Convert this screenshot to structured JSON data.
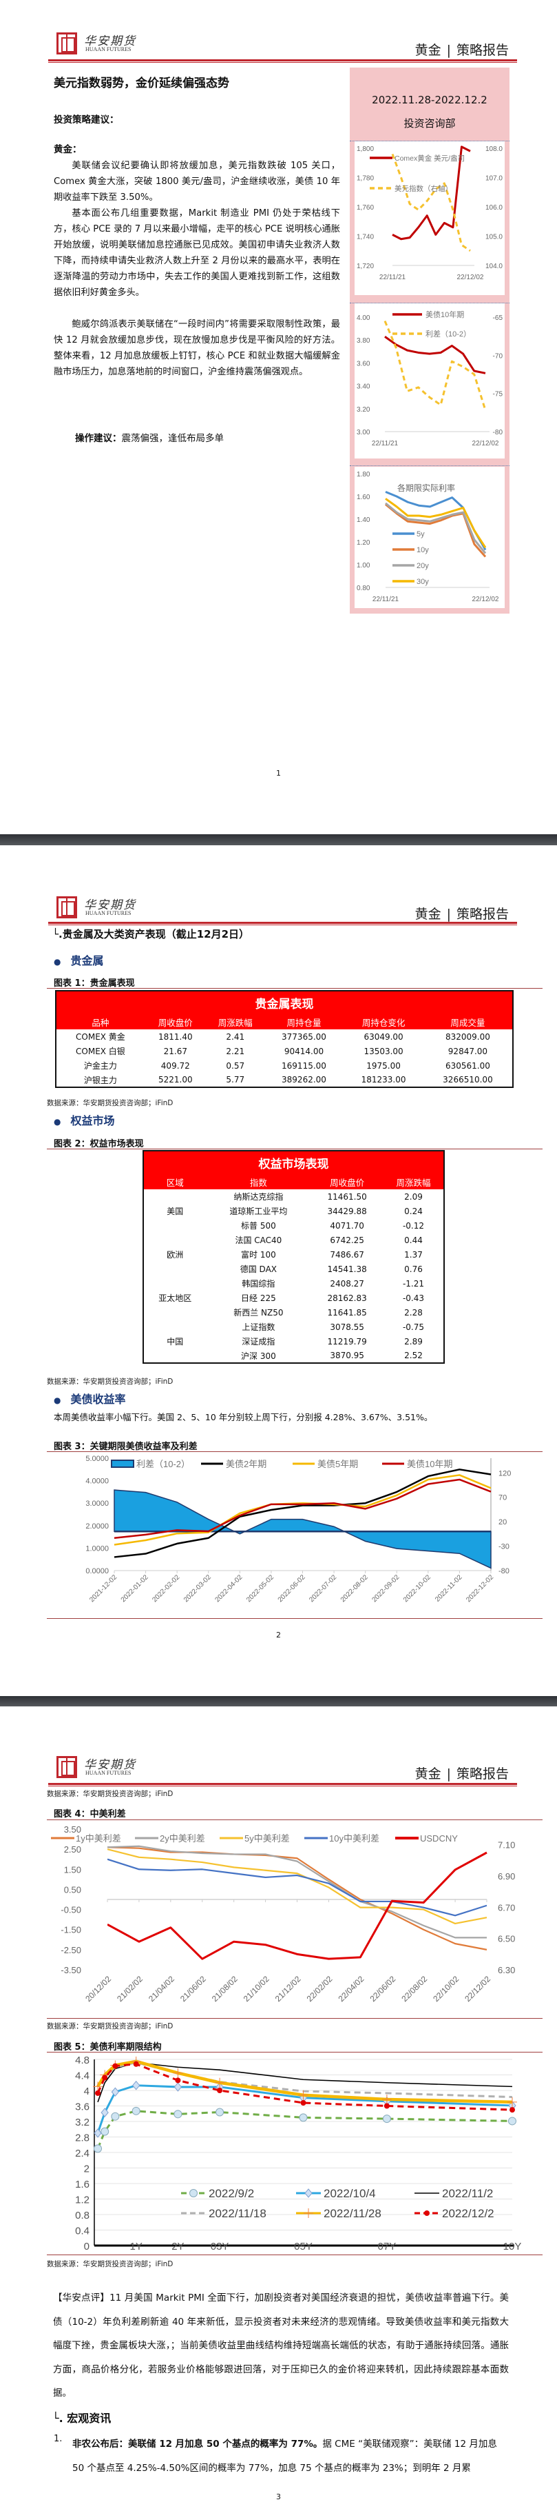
{
  "header": {
    "logo_cn": "华安期货",
    "logo_en": "HUAAN FUTURES",
    "category": "黄金",
    "separator": "|",
    "report_type": "策略报告"
  },
  "page1": {
    "title": "美元指数弱势，金价延续偏强态势",
    "strategy_heading": "投资策略建议：",
    "gold_heading": "黄金：",
    "paragraphs": [
      "美联储会议纪要确认即将放缓加息，美元指数跌破 105 关口，Comex 黄金大涨，突破 1800 美元/盎司，沪金继续收涨，美债 10 年期收益率下跌至 3.50%。",
      "基本面公布几组重要数据，Markit 制造业 PMI 仍处于荣枯线下方，核心 PCE 录的 7 月以来最小增幅，走平的核心 PCE 说明核心通胀开始放缓，说明美联储加息控通胀已见成效。美国初申请失业救济人数下降，而持续申请失业救济人数上升至 2 月份以来的最高水平，表明在逐渐降温的劳动力市场中，失去工作的美国人更难找到新工作，这组数据依旧利好黄金多头。",
      "鲍威尔鸽派表示美联储在“一段时间内”将需要采取限制性政策，最快 12 月就会放缓加息步伐，现在放慢加息步伐是平衡风险的好方法。整体来看，12 月加息放缓板上钉钉，核心 PCE 和就业数据大幅缓解金融市场压力，加息落地前的时间窗口，沪金维持震荡偏强观点。"
    ],
    "operation_label": "操作建议：",
    "operation_text": "震荡偏强，逢低布局多单",
    "sidebar": {
      "date_range": "2022.11.28-2022.12.2",
      "department": "投资咨询部"
    },
    "page_number": "1"
  },
  "page2": {
    "section_title": "└.贵金属及大类资产表现（截止12月2日）",
    "sub_precious": "贵金属",
    "fig1_title": "图表 1：贵金属表现",
    "table1": {
      "title": "贵金属表现",
      "columns": [
        "品种",
        "周收盘价",
        "周涨跌幅",
        "周持仓量",
        "周持仓变化",
        "周成交量"
      ],
      "rows": [
        [
          "COMEX 黄金",
          "1811.40",
          "2.41",
          "377365.00",
          "63049.00",
          "832009.00"
        ],
        [
          "COMEX 白银",
          "21.67",
          "2.21",
          "90414.00",
          "13503.00",
          "92847.00"
        ],
        [
          "沪金主力",
          "409.72",
          "0.57",
          "169115.00",
          "1975.00",
          "630561.00"
        ],
        [
          "沪银主力",
          "5221.00",
          "5.77",
          "389262.00",
          "181233.00",
          "3266510.00"
        ]
      ]
    },
    "source": "数据来源：华安期货投资咨询部；iFinD",
    "sub_equity": "权益市场",
    "fig2_title": "图表 2：权益市场表现",
    "table2": {
      "title": "权益市场表现",
      "columns": [
        "区域",
        "指数",
        "周收盘价",
        "周涨跌幅"
      ],
      "groups": [
        {
          "region": "美国",
          "rows": [
            [
              "纳斯达克综指",
              "11461.50",
              "2.09"
            ],
            [
              "道琼斯工业平均",
              "34429.88",
              "0.24"
            ],
            [
              "标普 500",
              "4071.70",
              "-0.12"
            ]
          ]
        },
        {
          "region": "欧洲",
          "rows": [
            [
              "法国 CAC40",
              "6742.25",
              "0.44"
            ],
            [
              "富时 100",
              "7486.67",
              "1.37"
            ],
            [
              "德国 DAX",
              "14541.38",
              "0.76"
            ]
          ]
        },
        {
          "region": "亚太地区",
          "rows": [
            [
              "韩国综指",
              "2408.27",
              "-1.21"
            ],
            [
              "日经 225",
              "28162.83",
              "-0.43"
            ],
            [
              "新西兰 NZ50",
              "11641.85",
              "2.28"
            ]
          ]
        },
        {
          "region": "中国",
          "rows": [
            [
              "上证指数",
              "3078.55",
              "-0.75"
            ],
            [
              "深证成指",
              "11219.79",
              "2.89"
            ],
            [
              "沪深 300",
              "3870.95",
              "2.52"
            ]
          ]
        }
      ]
    },
    "sub_treasury": "美债收益率",
    "treasury_text": "本周美债收益率小幅下行。美国 2、5、10 年分别较上周下行，分别报 4.28%、3.67%、3.51%。",
    "fig3_title": "图表 3：关键期限美债收益率及利差",
    "page_number": "2"
  },
  "page3": {
    "source": "数据来源：华安期货投资咨询部；iFinD",
    "fig4_title": "图表 4：中美利差",
    "fig5_title": "图表 5：美债利率期限结构",
    "comment": "【华安点评】11 月美国 Markit PMI 全面下行，加剧投资者对美国经济衰退的担忧，美债收益率普遍下行。美债（10-2）年负利差刷新逾 40 年来新低，显示投资者对未来经济的悲观情绪。导致美债收益率和美元指数大幅度下挫，贵金属板块大涨，；当前美债收益里曲线结构维持短端高长端低的状态，有助于通胀持续回落。通胀方面，商品价格分化，若服务业价格能够跟进回落，对于压抑已久的金价将迎来转机，因此持续跟踪基本面数据。",
    "section_title": "└. 宏观资讯",
    "news": [
      {
        "num": "1.",
        "headline": "非农公布后：美联储 12 月加息 50 个基点的概率为 77%。",
        "text": "据 CME “美联储观察”：美联储 12 月加息 50 个基点至 4.25%-4.50%区间的概率为 77%，加息 75 个基点的概率为 23%；到明年 2 月累"
      }
    ],
    "page_number": "3"
  },
  "chart_data": [
    {
      "type": "line",
      "x": [
        "22/11/21",
        "22/11/22",
        "22/11/23",
        "22/11/24",
        "22/11/25",
        "22/11/28",
        "22/11/29",
        "22/11/30",
        "22/12/01",
        "22/12/02"
      ],
      "xtick_labels": [
        "22/11/21",
        "22/12/02"
      ],
      "ylim_left": [
        1720,
        1800
      ],
      "yticks_left": [
        "1,720",
        "1,740",
        "1,760",
        "1,780",
        "1,800"
      ],
      "ylim_right": [
        104,
        108
      ],
      "yticks_right": [
        "104.0",
        "105.0",
        "106.0",
        "107.0",
        "108.0"
      ],
      "series": [
        {
          "name": "Comex黄金 美元/盎司",
          "axis": "left",
          "color": "#c00000",
          "values": [
            1741,
            1738,
            1739,
            1746,
            1754,
            1741,
            1749,
            1746,
            1801,
            1798
          ]
        },
        {
          "name": "美元指数（右轴）",
          "axis": "right",
          "color": "#f5c12e",
          "style": "dashed",
          "values": [
            107.8,
            107.0,
            106.1,
            105.9,
            106.2,
            106.6,
            106.8,
            105.9,
            104.7,
            104.5
          ]
        }
      ]
    },
    {
      "type": "line",
      "x": [
        "22/11/21",
        "22/11/22",
        "22/11/23",
        "22/11/24",
        "22/11/25",
        "22/11/28",
        "22/11/29",
        "22/11/30",
        "22/12/01",
        "22/12/02"
      ],
      "xtick_labels": [
        "22/11/21",
        "22/12/02"
      ],
      "ylim_left": [
        3.0,
        4.0
      ],
      "yticks_left": [
        "3.00",
        "3.20",
        "3.40",
        "3.60",
        "3.80",
        "4.00"
      ],
      "ylim_right": [
        -80,
        -65
      ],
      "yticks_right": [
        "-80",
        "-75",
        "-70",
        "-65"
      ],
      "series": [
        {
          "name": "美债10年期",
          "axis": "left",
          "color": "#c00000",
          "values": [
            3.83,
            3.76,
            3.71,
            3.69,
            3.68,
            3.69,
            3.75,
            3.68,
            3.53,
            3.51
          ]
        },
        {
          "name": "利差（10-2）",
          "axis": "right",
          "color": "#f5c12e",
          "style": "dashed",
          "values": [
            -65.5,
            -69,
            -74.7,
            -74.2,
            -75.5,
            -76.5,
            -70.8,
            -71.5,
            -72.5,
            -77.2
          ]
        }
      ]
    },
    {
      "type": "line",
      "title": "各期限实际利率",
      "x": [
        "22/11/21",
        "22/11/22",
        "22/11/23",
        "22/11/24",
        "22/11/25",
        "22/11/28",
        "22/11/29",
        "22/11/30",
        "22/12/01",
        "22/12/02"
      ],
      "xtick_labels": [
        "22/11/21",
        "22/12/02"
      ],
      "ylim": [
        0.8,
        1.8
      ],
      "yticks": [
        "0.80",
        "1.00",
        "1.20",
        "1.40",
        "1.60",
        "1.80"
      ],
      "series": [
        {
          "name": "5y",
          "color": "#4a8fd0",
          "values": [
            1.64,
            1.6,
            1.55,
            1.52,
            1.51,
            1.55,
            1.59,
            1.5,
            1.3,
            1.13
          ]
        },
        {
          "name": "10y",
          "color": "#e07b39",
          "values": [
            1.53,
            1.45,
            1.38,
            1.37,
            1.36,
            1.39,
            1.43,
            1.45,
            1.18,
            1.07
          ]
        },
        {
          "name": "20y",
          "color": "#a5a5a5",
          "values": [
            1.54,
            1.46,
            1.4,
            1.39,
            1.38,
            1.41,
            1.44,
            1.46,
            1.22,
            1.1
          ]
        },
        {
          "name": "30y",
          "color": "#f5b800",
          "values": [
            1.58,
            1.51,
            1.43,
            1.43,
            1.42,
            1.44,
            1.47,
            1.5,
            1.3,
            1.15
          ]
        }
      ]
    },
    {
      "type": "line",
      "x": [
        "2021-12-02",
        "2022-01-02",
        "2022-02-02",
        "2022-03-02",
        "2022-04-02",
        "2022-05-02",
        "2022-06-02",
        "2022-07-02",
        "2022-08-02",
        "2022-09-02",
        "2022-10-02",
        "2022-11-02",
        "2022-12-02"
      ],
      "ylim_left": [
        0,
        5
      ],
      "yticks_left": [
        "0.0000",
        "1.0000",
        "2.0000",
        "3.0000",
        "4.0000",
        "5.0000"
      ],
      "ylim_right": [
        -80,
        150
      ],
      "yticks_right_values": [
        -80,
        -30,
        20,
        70,
        120
      ],
      "yticks_right": [
        "-80",
        "-30",
        "20",
        "70",
        "120"
      ],
      "series": [
        {
          "name": "利差（10-2）",
          "axis": "right",
          "type": "area",
          "color": "#1aa0e0",
          "values": [
            85,
            80,
            60,
            25,
            -5,
            25,
            25,
            10,
            -20,
            -35,
            -40,
            -45,
            -75
          ]
        },
        {
          "name": "美债2年期",
          "axis": "left",
          "color": "#000000",
          "values": [
            0.6,
            0.75,
            1.2,
            1.45,
            2.4,
            2.7,
            2.9,
            2.9,
            3.0,
            3.5,
            4.2,
            4.5,
            4.28
          ]
        },
        {
          "name": "美债5年期",
          "axis": "left",
          "color": "#f5b800",
          "values": [
            1.15,
            1.35,
            1.65,
            1.7,
            2.55,
            2.95,
            3.0,
            2.95,
            2.85,
            3.35,
            4.05,
            4.25,
            3.67
          ]
        },
        {
          "name": "美债10年期",
          "axis": "left",
          "color": "#c00000",
          "values": [
            1.45,
            1.6,
            1.8,
            1.75,
            2.45,
            2.95,
            2.95,
            3.0,
            2.75,
            3.2,
            3.85,
            4.05,
            3.51
          ]
        }
      ]
    },
    {
      "type": "line",
      "x": [
        "20/12/02",
        "21/02/02",
        "21/04/02",
        "21/06/02",
        "21/08/02",
        "21/10/02",
        "21/12/02",
        "22/02/02",
        "22/04/02",
        "22/06/02",
        "22/08/02",
        "22/10/02",
        "22/12/02"
      ],
      "ylim_left": [
        -3.5,
        3.5
      ],
      "yticks_left": [
        "-3.50",
        "-2.50",
        "-1.50",
        "-0.50",
        "0.50",
        "1.50",
        "2.50",
        "3.50"
      ],
      "ylim_right": [
        6.3,
        7.2
      ],
      "yticks_right_values": [
        6.3,
        6.5,
        6.7,
        6.9,
        7.1
      ],
      "yticks_right": [
        "6.30",
        "6.50",
        "6.70",
        "6.90",
        "7.10"
      ],
      "series": [
        {
          "name": "1y中美利差",
          "axis": "left",
          "color": "#e07b39",
          "values": [
            2.6,
            2.55,
            2.35,
            2.35,
            2.25,
            2.2,
            2.05,
            1.0,
            0.0,
            -0.7,
            -1.5,
            -2.2,
            -2.5
          ]
        },
        {
          "name": "2y中美利差",
          "axis": "left",
          "color": "#a5a5a5",
          "values": [
            2.6,
            2.65,
            2.4,
            2.3,
            2.25,
            2.25,
            1.9,
            0.9,
            -0.1,
            -0.6,
            -1.3,
            -1.9,
            -1.9
          ]
        },
        {
          "name": "5y中美利差",
          "axis": "left",
          "color": "#f5c12e",
          "values": [
            2.5,
            2.1,
            2.0,
            1.85,
            1.6,
            1.45,
            1.3,
            0.6,
            -0.4,
            -0.4,
            -0.5,
            -1.2,
            -0.9
          ]
        },
        {
          "name": "10y中美利差",
          "axis": "left",
          "color": "#4472c4",
          "values": [
            2.0,
            1.5,
            1.45,
            1.5,
            1.3,
            1.1,
            1.2,
            0.8,
            -0.1,
            -0.1,
            -0.4,
            -0.8,
            -0.3
          ]
        },
        {
          "name": "USDCNY",
          "axis": "right",
          "color": "#e00000",
          "values": [
            6.59,
            6.48,
            6.57,
            6.37,
            6.48,
            6.46,
            6.4,
            6.37,
            6.38,
            6.74,
            6.73,
            6.94,
            7.05
          ]
        }
      ]
    },
    {
      "type": "line",
      "x_years": [
        0.083,
        0.25,
        0.5,
        1,
        2,
        3,
        5,
        7,
        10
      ],
      "xtick_labels": [
        "1Y",
        "2Y",
        "03Y",
        "05Y",
        "07Y",
        "10Y"
      ],
      "xtick_years": [
        1,
        2,
        3,
        5,
        7,
        10
      ],
      "ylim": [
        0,
        4.8
      ],
      "yticks": [
        "0",
        "0.4",
        "0.8",
        "1.2",
        "1.6",
        "2",
        "2.4",
        "2.8",
        "3.2",
        "3.6",
        "4",
        "4.4",
        "4.8"
      ],
      "series": [
        {
          "name": "2022/9/2",
          "color": "#70ad47",
          "style": "dashed",
          "marker": "circle",
          "values": [
            2.5,
            2.94,
            3.33,
            3.47,
            3.39,
            3.44,
            3.3,
            3.27,
            3.21
          ]
        },
        {
          "name": "2022/10/4",
          "color": "#2ea8e0",
          "marker": "diamond",
          "values": [
            2.9,
            3.43,
            3.96,
            4.13,
            4.09,
            4.09,
            3.81,
            3.72,
            3.61
          ]
        },
        {
          "name": "2022/11/2",
          "color": "#000000",
          "values": [
            3.7,
            4.2,
            4.56,
            4.72,
            4.6,
            4.53,
            4.28,
            4.2,
            4.1
          ]
        },
        {
          "name": "2022/11/18",
          "color": "#b0b0b0",
          "style": "dashed",
          "values": [
            4.1,
            4.35,
            4.6,
            4.72,
            4.45,
            4.22,
            3.98,
            3.93,
            3.83
          ]
        },
        {
          "name": "2022/11/28",
          "color": "#f5b800",
          "marker": "plus",
          "values": [
            4.1,
            4.4,
            4.65,
            4.75,
            4.45,
            4.2,
            3.88,
            3.77,
            3.7
          ]
        },
        {
          "name": "2022/12/2",
          "color": "#e00000",
          "style": "dashed",
          "marker": "dot",
          "values": [
            3.93,
            4.33,
            4.63,
            4.68,
            4.26,
            4.0,
            3.68,
            3.6,
            3.5
          ]
        }
      ]
    }
  ]
}
